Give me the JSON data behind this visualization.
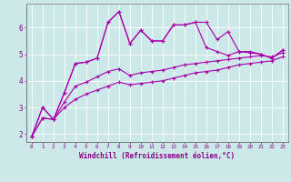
{
  "xlabel": "Windchill (Refroidissement éolien,°C)",
  "background_color": "#cce8e8",
  "line_color": "#aa00aa",
  "grid_color": "#aacccc",
  "xlim": [
    -0.5,
    23.5
  ],
  "ylim": [
    1.7,
    6.9
  ],
  "xticks": [
    0,
    1,
    2,
    3,
    4,
    5,
    6,
    7,
    8,
    9,
    10,
    11,
    12,
    13,
    14,
    15,
    16,
    17,
    18,
    19,
    20,
    21,
    22,
    23
  ],
  "yticks": [
    2,
    3,
    4,
    5,
    6
  ],
  "series": [
    [
      1.9,
      3.0,
      2.55,
      3.55,
      4.65,
      4.7,
      4.85,
      6.2,
      6.6,
      5.4,
      5.9,
      5.5,
      5.5,
      6.1,
      6.1,
      6.2,
      6.2,
      5.55,
      5.85,
      5.1,
      5.1,
      5.0,
      4.85,
      5.15
    ],
    [
      1.9,
      3.0,
      2.55,
      3.55,
      4.65,
      4.7,
      4.85,
      6.2,
      6.6,
      5.4,
      5.9,
      5.5,
      5.5,
      6.1,
      6.1,
      6.2,
      5.25,
      5.1,
      4.95,
      5.1,
      5.05,
      5.0,
      4.85,
      5.15
    ],
    [
      1.9,
      2.6,
      2.55,
      3.2,
      3.8,
      3.95,
      4.15,
      4.35,
      4.45,
      4.2,
      4.3,
      4.35,
      4.4,
      4.5,
      4.6,
      4.65,
      4.7,
      4.75,
      4.8,
      4.85,
      4.9,
      4.95,
      4.9,
      5.05
    ],
    [
      1.9,
      2.6,
      2.55,
      3.0,
      3.3,
      3.5,
      3.65,
      3.8,
      3.95,
      3.85,
      3.9,
      3.95,
      4.0,
      4.1,
      4.2,
      4.3,
      4.35,
      4.4,
      4.5,
      4.6,
      4.65,
      4.7,
      4.75,
      4.9
    ]
  ]
}
